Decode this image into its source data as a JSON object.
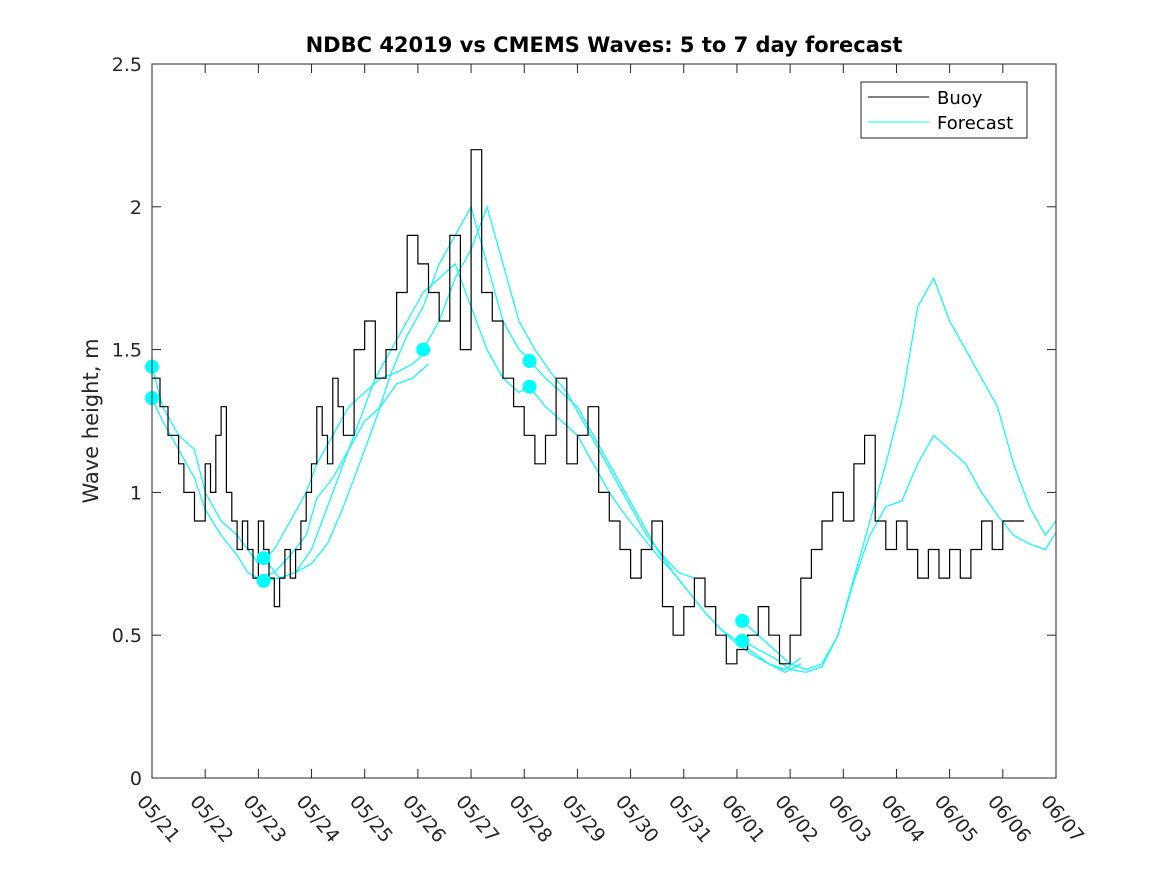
{
  "chart_data": {
    "type": "line",
    "title": "NDBC 42019 vs CMEMS Waves: 5 to 7 day forecast",
    "xlabel": "",
    "ylabel": "Wave height, m",
    "xlim": [
      0,
      17
    ],
    "ylim": [
      0,
      2.5
    ],
    "x_tick_labels": [
      "05/21",
      "05/22",
      "05/23",
      "05/24",
      "05/25",
      "05/26",
      "05/27",
      "05/28",
      "05/29",
      "05/30",
      "05/31",
      "06/01",
      "06/02",
      "06/03",
      "06/04",
      "06/05",
      "06/06",
      "06/07"
    ],
    "y_ticks": [
      0,
      0.5,
      1,
      1.5,
      2,
      2.5
    ],
    "y_tick_labels": [
      "0",
      "0.5",
      "1",
      "1.5",
      "2",
      "2.5"
    ],
    "grid": false,
    "legend_position": "top-right",
    "series": [
      {
        "name": "Buoy",
        "color": "#000000",
        "step": true,
        "x": [
          0,
          0.15,
          0.3,
          0.5,
          0.6,
          0.8,
          1.0,
          1.1,
          1.2,
          1.3,
          1.4,
          1.5,
          1.6,
          1.7,
          1.8,
          1.9,
          2.0,
          2.1,
          2.2,
          2.3,
          2.4,
          2.5,
          2.6,
          2.7,
          2.8,
          2.9,
          3.0,
          3.1,
          3.2,
          3.3,
          3.4,
          3.5,
          3.6,
          3.8,
          4.0,
          4.2,
          4.4,
          4.6,
          4.8,
          5.0,
          5.2,
          5.4,
          5.6,
          5.8,
          6.0,
          6.2,
          6.4,
          6.6,
          6.8,
          7.0,
          7.2,
          7.4,
          7.6,
          7.8,
          8.0,
          8.2,
          8.4,
          8.6,
          8.8,
          9.0,
          9.2,
          9.4,
          9.6,
          9.8,
          10.0,
          10.2,
          10.4,
          10.6,
          10.8,
          11.0,
          11.2,
          11.4,
          11.6,
          11.8,
          12.0,
          12.2,
          12.4,
          12.6,
          12.8,
          13.0,
          13.2,
          13.4,
          13.6,
          13.8,
          14.0,
          14.2,
          14.4,
          14.6,
          14.8,
          15.0,
          15.2,
          15.4,
          15.6,
          15.8,
          16.0,
          16.2
        ],
        "y": [
          1.4,
          1.3,
          1.2,
          1.1,
          1.0,
          0.9,
          1.1,
          1.0,
          1.2,
          1.3,
          1.0,
          0.9,
          0.8,
          0.9,
          0.8,
          0.7,
          0.9,
          0.8,
          0.7,
          0.6,
          0.7,
          0.8,
          0.7,
          0.8,
          0.9,
          1.0,
          1.1,
          1.3,
          1.2,
          1.1,
          1.4,
          1.3,
          1.2,
          1.5,
          1.6,
          1.4,
          1.5,
          1.7,
          1.9,
          1.8,
          1.7,
          1.6,
          1.9,
          1.5,
          2.2,
          1.7,
          1.6,
          1.4,
          1.3,
          1.2,
          1.1,
          1.2,
          1.4,
          1.1,
          1.2,
          1.3,
          1.0,
          0.9,
          0.8,
          0.7,
          0.8,
          0.9,
          0.6,
          0.5,
          0.6,
          0.7,
          0.6,
          0.5,
          0.4,
          0.45,
          0.5,
          0.6,
          0.5,
          0.4,
          0.5,
          0.7,
          0.8,
          0.9,
          1.0,
          0.9,
          1.1,
          1.2,
          0.9,
          0.8,
          0.9,
          0.8,
          0.7,
          0.8,
          0.7,
          0.8,
          0.7,
          0.8,
          0.9,
          0.8,
          0.9,
          0.9
        ]
      },
      {
        "name": "Forecast",
        "color": "#00ffff",
        "runs": [
          {
            "x": [
              0,
              0.2,
              0.5,
              0.8,
              1.0,
              1.3,
              1.6,
              1.8,
              2.0,
              2.3,
              2.6,
              2.9,
              3.1,
              3.4,
              3.7,
              4.0,
              4.3,
              4.6,
              4.9,
              5.2
            ],
            "y": [
              1.44,
              1.3,
              1.2,
              1.15,
              1.0,
              0.9,
              0.85,
              0.8,
              0.75,
              0.8,
              0.9,
              1.0,
              1.1,
              1.2,
              1.3,
              1.35,
              1.4,
              1.42,
              1.45,
              1.5
            ]
          },
          {
            "x": [
              0,
              0.2,
              0.5,
              0.8,
              1.0,
              1.3,
              1.6,
              1.8,
              2.0,
              2.3,
              2.6,
              2.9,
              3.1,
              3.4,
              3.7,
              4.0,
              4.3,
              4.6,
              4.9,
              5.2
            ],
            "y": [
              1.33,
              1.25,
              1.15,
              1.05,
              0.94,
              0.85,
              0.78,
              0.72,
              0.7,
              0.72,
              0.78,
              0.85,
              0.98,
              1.05,
              1.15,
              1.25,
              1.3,
              1.38,
              1.4,
              1.45
            ]
          },
          {
            "x": [
              2.1,
              2.4,
              2.7,
              3.0,
              3.3,
              3.6,
              3.9,
              4.2,
              4.5,
              4.8,
              5.1,
              5.4,
              5.7,
              6.0,
              6.3,
              6.6,
              6.9,
              7.2
            ],
            "y": [
              0.77,
              0.7,
              0.72,
              0.8,
              0.95,
              1.1,
              1.25,
              1.4,
              1.5,
              1.6,
              1.7,
              1.75,
              1.8,
              1.65,
              1.5,
              1.4,
              1.35,
              1.38
            ]
          },
          {
            "x": [
              2.1,
              2.4,
              2.7,
              3.0,
              3.3,
              3.6,
              3.9,
              4.2,
              4.5,
              4.8,
              5.1,
              5.4,
              5.7,
              6.0,
              6.3,
              6.6,
              6.9,
              7.2
            ],
            "y": [
              0.69,
              0.7,
              0.72,
              0.75,
              0.82,
              0.95,
              1.1,
              1.25,
              1.42,
              1.55,
              1.65,
              1.8,
              1.9,
              2.0,
              1.8,
              1.6,
              1.5,
              1.45
            ]
          },
          {
            "x": [
              5.1,
              5.4,
              5.7,
              6.0,
              6.3,
              6.6,
              6.9,
              7.2,
              7.5,
              7.8,
              8.1,
              8.4,
              8.7,
              9.0,
              9.3,
              9.6,
              9.9,
              10.2
            ],
            "y": [
              1.5,
              1.6,
              1.75,
              1.85,
              2.0,
              1.8,
              1.6,
              1.5,
              1.42,
              1.35,
              1.25,
              1.15,
              1.05,
              0.95,
              0.85,
              0.78,
              0.72,
              0.7
            ]
          },
          {
            "x": [
              7.1,
              7.4,
              7.7,
              8.0,
              8.3,
              8.6,
              8.9,
              9.2,
              9.5,
              9.8,
              10.1,
              10.4,
              10.7,
              11.0,
              11.3,
              11.6,
              11.9,
              12.2
            ],
            "y": [
              1.46,
              1.4,
              1.35,
              1.3,
              1.2,
              1.1,
              1.0,
              0.9,
              0.8,
              0.72,
              0.65,
              0.58,
              0.52,
              0.47,
              0.43,
              0.4,
              0.37,
              0.4
            ]
          },
          {
            "x": [
              7.1,
              7.4,
              7.7,
              8.0,
              8.3,
              8.6,
              8.9,
              9.2,
              9.5,
              9.8,
              10.1,
              10.4,
              10.7,
              11.0,
              11.3,
              11.6,
              11.9,
              12.2
            ],
            "y": [
              1.37,
              1.3,
              1.25,
              1.2,
              1.1,
              1.0,
              0.92,
              0.85,
              0.78,
              0.72,
              0.65,
              0.58,
              0.52,
              0.48,
              0.44,
              0.4,
              0.38,
              0.42
            ]
          },
          {
            "x": [
              11.1,
              11.4,
              11.7,
              12.0,
              12.3,
              12.6,
              12.9,
              13.2,
              13.5,
              13.8,
              14.1,
              14.4,
              14.7,
              15.0,
              15.3,
              15.6,
              15.9,
              16.2,
              16.5,
              16.8,
              17.0
            ],
            "y": [
              0.55,
              0.5,
              0.45,
              0.4,
              0.38,
              0.4,
              0.5,
              0.7,
              0.9,
              1.1,
              1.32,
              1.65,
              1.75,
              1.6,
              1.5,
              1.4,
              1.3,
              1.1,
              0.95,
              0.85,
              0.9
            ]
          },
          {
            "x": [
              11.1,
              11.4,
              11.7,
              12.0,
              12.3,
              12.6,
              12.9,
              13.2,
              13.5,
              13.8,
              14.1,
              14.4,
              14.7,
              15.0,
              15.3,
              15.6,
              15.9,
              16.2,
              16.5,
              16.8,
              17.0
            ],
            "y": [
              0.48,
              0.45,
              0.42,
              0.38,
              0.37,
              0.39,
              0.5,
              0.69,
              0.85,
              0.95,
              0.97,
              1.1,
              1.2,
              1.15,
              1.1,
              1.0,
              0.92,
              0.85,
              0.82,
              0.8,
              0.86
            ]
          }
        ]
      }
    ]
  }
}
